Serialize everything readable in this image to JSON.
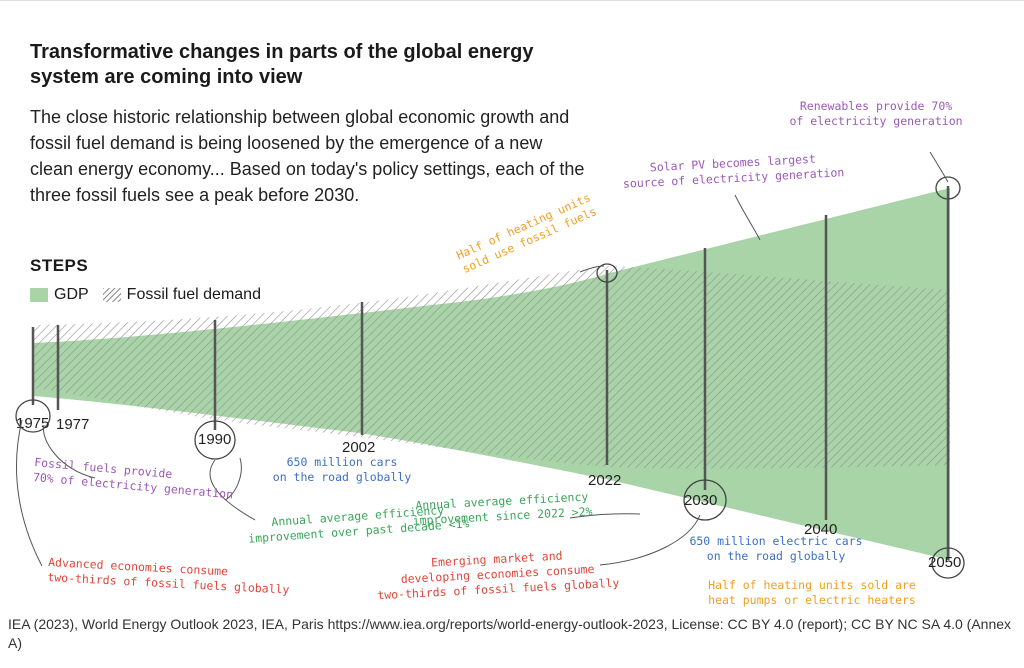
{
  "header": {
    "title": "Transformative changes in parts of the global energy system are coming into view",
    "subtitle": "The close historic relationship between global economic growth and fossil fuel demand is being loosened by the emergence of a new clean energy economy... Based on today's policy settings, each of the three fossil fuels see a peak before 2030.",
    "scenario": "STEPS"
  },
  "legend": {
    "gdp": "GDP",
    "fossil": "Fossil fuel demand"
  },
  "colors": {
    "gdp_fill": "#a8d4a8",
    "hatch": "#8f8f8f",
    "purple": "#9b59b6",
    "blue": "#3d6fc6",
    "green": "#3aa55a",
    "red": "#e0463a",
    "orange": "#f0a020"
  },
  "chart_data": {
    "type": "area",
    "title": "Transformative changes in parts of the global energy system are coming into view",
    "xlabel": "",
    "ylabel": "",
    "x": [
      1975,
      1977,
      1990,
      2002,
      2022,
      2030,
      2040,
      2050
    ],
    "milestones": [
      {
        "year": 1975,
        "label": "1975",
        "circled": true
      },
      {
        "year": 1977,
        "label": "1977",
        "circled": false
      },
      {
        "year": 1990,
        "label": "1990",
        "circled": true
      },
      {
        "year": 2002,
        "label": "2002",
        "circled": false
      },
      {
        "year": 2022,
        "label": "2022",
        "circled": false
      },
      {
        "year": 2030,
        "label": "2030",
        "circled": true
      },
      {
        "year": 2040,
        "label": "2040",
        "circled": false
      },
      {
        "year": 2050,
        "label": "2050",
        "circled": true
      }
    ],
    "series": [
      {
        "name": "GDP"
      },
      {
        "name": "Fossil fuel demand"
      }
    ],
    "annotations": [
      {
        "text": "Fossil fuels provide\n70% of electricity generation",
        "color": "purple",
        "year": 1975
      },
      {
        "text": "Advanced economies consume\ntwo-thirds of fossil fuels globally",
        "color": "red",
        "year": 1975
      },
      {
        "text": "Annual average efficiency\nimprovement over past decade <1%",
        "color": "green",
        "year": 1990
      },
      {
        "text": "650 million cars\non the road globally",
        "color": "blue",
        "year": 2002
      },
      {
        "text": "Half of heating units\nsold use fossil fuels",
        "color": "orange",
        "year": 2022
      },
      {
        "text": "Annual average efficiency\nimprovement since 2022 >2%",
        "color": "green",
        "year": 2030
      },
      {
        "text": "Emerging market and\ndeveloping economies consume\ntwo-thirds of fossil fuels globally",
        "color": "red",
        "year": 2030
      },
      {
        "text": "Solar PV becomes largest\nsource of electricity generation",
        "color": "purple",
        "year": 2030
      },
      {
        "text": "650 million electric cars\non the road globally",
        "color": "blue",
        "year": 2040
      },
      {
        "text": "Half of heating units sold are\nheat pumps or electric heaters",
        "color": "orange",
        "year": 2050
      },
      {
        "text": "Renewables provide 70%\nof electricity generation",
        "color": "purple",
        "year": 2050
      }
    ]
  },
  "source": "IEA (2023), World Energy Outlook 2023, IEA, Paris https://www.iea.org/reports/world-energy-outlook-2023, License: CC BY 4.0 (report); CC BY NC SA 4.0 (Annex A)"
}
